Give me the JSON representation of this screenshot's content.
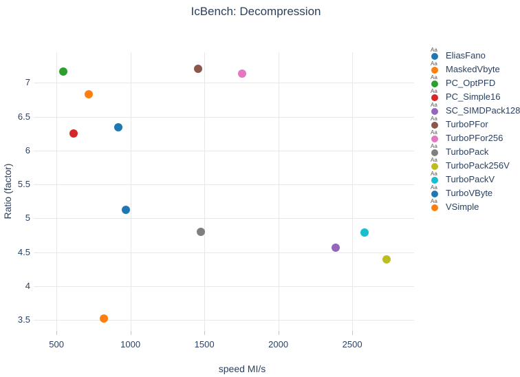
{
  "chart_data": {
    "type": "scatter",
    "title": "IcBench: Decompression",
    "xlabel": "speed MI/s",
    "ylabel": "Ratio (factor)",
    "xlim": [
      346,
      2918
    ],
    "ylim": [
      3.34,
      7.45
    ],
    "x_ticks": [
      500,
      1000,
      1500,
      2000,
      2500
    ],
    "y_ticks": [
      3.5,
      4,
      4.5,
      5,
      5.5,
      6,
      6.5,
      7
    ],
    "grid": true,
    "legend_position": "right",
    "legend_sample_text": "Aa",
    "series": [
      {
        "name": "EliasFano",
        "color": "#1f77b4",
        "x": 920,
        "y": 6.34
      },
      {
        "name": "MaskedVbyte",
        "color": "#ff7f0e",
        "x": 720,
        "y": 6.83
      },
      {
        "name": "PC_OptPFD",
        "color": "#2ca02c",
        "x": 545,
        "y": 7.17
      },
      {
        "name": "PC_Simple16",
        "color": "#d62728",
        "x": 617,
        "y": 6.25
      },
      {
        "name": "SC_SIMDPack128",
        "color": "#9467bd",
        "x": 2386,
        "y": 4.57
      },
      {
        "name": "TurboPFor",
        "color": "#8c564b",
        "x": 1458,
        "y": 7.21
      },
      {
        "name": "TurboPFor256",
        "color": "#e377c2",
        "x": 1754,
        "y": 7.14
      },
      {
        "name": "TurboPack",
        "color": "#7f7f7f",
        "x": 1476,
        "y": 4.8
      },
      {
        "name": "TurboPack256V",
        "color": "#bcbd22",
        "x": 2731,
        "y": 4.4
      },
      {
        "name": "TurboPackV",
        "color": "#17becf",
        "x": 2585,
        "y": 4.79
      },
      {
        "name": "TurboVByte",
        "color": "#1f77b4",
        "x": 970,
        "y": 5.13
      },
      {
        "name": "VSimple",
        "color": "#ff7f0e",
        "x": 820,
        "y": 3.52
      }
    ],
    "colors": {
      "text": "#2a3f5f",
      "grid": "#e8e8e8",
      "tick": "#c6c6c6",
      "legend_sample": "#555555",
      "background": "#ffffff"
    }
  }
}
